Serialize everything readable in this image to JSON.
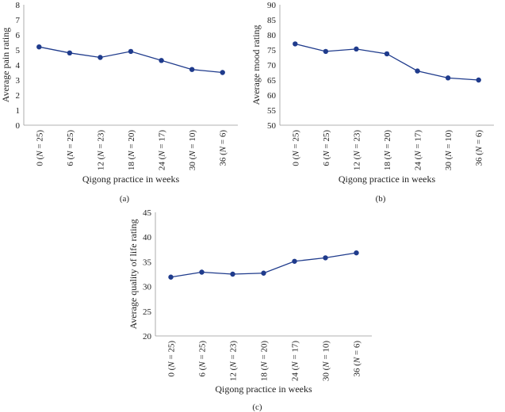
{
  "chart_data": [
    {
      "type": "line",
      "panel_label": "(a)",
      "categories": [
        "0 (N = 25)",
        "6 (N = 25)",
        "12 (N = 23)",
        "18 (N = 20)",
        "24 (N = 17)",
        "30 (N = 10)",
        "36 (N = 6)"
      ],
      "category_parts": [
        {
          "w": "0",
          "n": "25"
        },
        {
          "w": "6",
          "n": "25"
        },
        {
          "w": "12",
          "n": "23"
        },
        {
          "w": "18",
          "n": "20"
        },
        {
          "w": "24",
          "n": "17"
        },
        {
          "w": "30",
          "n": "10"
        },
        {
          "w": "36",
          "n": "6"
        }
      ],
      "values": [
        5.2,
        4.8,
        4.5,
        4.9,
        4.3,
        3.7,
        3.5
      ],
      "xlabel": "Qigong practice in weeks",
      "ylabel": "Average pain rating",
      "ylim": [
        0,
        8
      ],
      "yticks": [
        0,
        1,
        2,
        3,
        4,
        5,
        6,
        7,
        8
      ],
      "color": "#1f3b8c"
    },
    {
      "type": "line",
      "panel_label": "(b)",
      "categories": [
        "0 (N = 25)",
        "6 (N = 25)",
        "12 (N = 23)",
        "18 (N = 20)",
        "24 (N = 17)",
        "30 (N = 10)",
        "36 (N = 6)"
      ],
      "category_parts": [
        {
          "w": "0",
          "n": "25"
        },
        {
          "w": "6",
          "n": "25"
        },
        {
          "w": "12",
          "n": "23"
        },
        {
          "w": "18",
          "n": "20"
        },
        {
          "w": "24",
          "n": "17"
        },
        {
          "w": "30",
          "n": "10"
        },
        {
          "w": "36",
          "n": "6"
        }
      ],
      "values": [
        77,
        74.5,
        75.3,
        73.7,
        68,
        65.7,
        65
      ],
      "xlabel": "Qigong practice in weeks",
      "ylabel": "Average mood rating",
      "ylim": [
        50,
        90
      ],
      "yticks": [
        50,
        55,
        60,
        65,
        70,
        75,
        80,
        85,
        90
      ],
      "color": "#1f3b8c"
    },
    {
      "type": "line",
      "panel_label": "(c)",
      "categories": [
        "0 (N = 25)",
        "6 (N = 25)",
        "12 (N = 23)",
        "18 (N = 20)",
        "24 (N = 17)",
        "30 (N = 10)",
        "36 (N = 6)"
      ],
      "category_parts": [
        {
          "w": "0",
          "n": "25"
        },
        {
          "w": "6",
          "n": "25"
        },
        {
          "w": "12",
          "n": "23"
        },
        {
          "w": "18",
          "n": "20"
        },
        {
          "w": "24",
          "n": "17"
        },
        {
          "w": "30",
          "n": "10"
        },
        {
          "w": "36",
          "n": "6"
        }
      ],
      "values": [
        31.9,
        32.9,
        32.5,
        32.7,
        35.1,
        35.8,
        36.8
      ],
      "xlabel": "Qigong practice in weeks",
      "ylabel": "Average quality of life rating",
      "ylim": [
        20,
        45
      ],
      "yticks": [
        20,
        25,
        30,
        35,
        40,
        45
      ],
      "color": "#1f3b8c"
    }
  ]
}
